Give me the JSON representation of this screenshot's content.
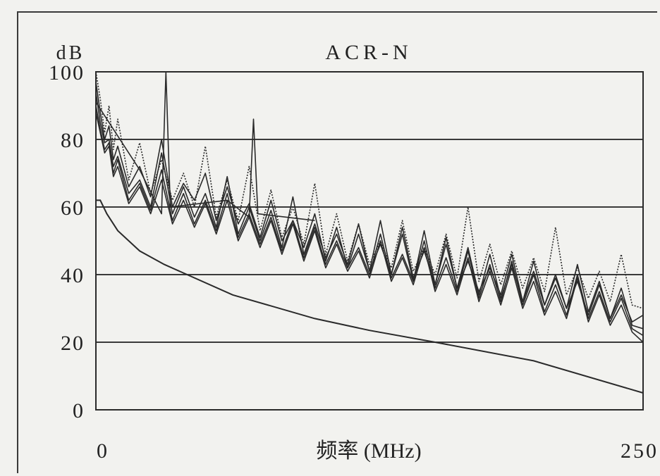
{
  "chart_data": {
    "type": "line",
    "title": "ACR-N",
    "ylabel": "dB",
    "xlabel": "频率 (MHz)",
    "xlim": [
      0,
      250
    ],
    "ylim": [
      0,
      100
    ],
    "x_ticks": [
      "0",
      "250"
    ],
    "y_ticks": [
      "0",
      "20",
      "40",
      "60",
      "80",
      "100"
    ],
    "grid": "horizontal",
    "colors": {
      "line": "#2a2a2a",
      "grid": "#3a3a3a",
      "background": "#f2f2ef"
    },
    "limit_line": {
      "x": [
        0,
        2,
        5,
        10,
        20,
        31.25,
        62.5,
        100,
        125,
        155,
        200,
        250
      ],
      "y": [
        62,
        62,
        58,
        53,
        47,
        43,
        34,
        27,
        23.5,
        20,
        14.5,
        5
      ]
    },
    "series": [
      {
        "style": "solid",
        "x": [
          0,
          2,
          4,
          6,
          8,
          10,
          15,
          20,
          25,
          30,
          35,
          40,
          45,
          50,
          55,
          60,
          65,
          70,
          75,
          80,
          85,
          90,
          95,
          100,
          105,
          110,
          115,
          120,
          125,
          130,
          135,
          140,
          145,
          150,
          155,
          160,
          165,
          170,
          175,
          180,
          185,
          190,
          195,
          200,
          205,
          210,
          215,
          220,
          225,
          230,
          235,
          240,
          245,
          250
        ],
        "y": [
          97,
          88,
          80,
          84,
          74,
          78,
          66,
          72,
          63,
          80,
          60,
          67,
          62,
          70,
          56,
          66,
          55,
          61,
          51,
          62,
          50,
          56,
          48,
          58,
          44,
          54,
          42,
          52,
          41,
          56,
          40,
          52,
          38,
          53,
          37,
          49,
          36,
          48,
          34,
          46,
          33,
          43,
          32,
          44,
          31,
          40,
          30,
          38,
          28,
          37,
          27,
          34,
          26,
          28
        ]
      },
      {
        "style": "dotted",
        "x": [
          0,
          2,
          4,
          6,
          8,
          10,
          15,
          20,
          25,
          30,
          35,
          40,
          45,
          50,
          55,
          60,
          65,
          70,
          75,
          80,
          85,
          90,
          95,
          100,
          105,
          110,
          115,
          120,
          125,
          130,
          135,
          140,
          145,
          150,
          155,
          160,
          165,
          170,
          175,
          180,
          185,
          190,
          195,
          200,
          205,
          210,
          215,
          220,
          225,
          230,
          235,
          240,
          245,
          250
        ],
        "y": [
          100,
          92,
          82,
          90,
          77,
          86,
          68,
          79,
          64,
          74,
          62,
          70,
          60,
          78,
          57,
          68,
          56,
          72,
          53,
          65,
          51,
          60,
          49,
          67,
          46,
          58,
          44,
          55,
          43,
          50,
          42,
          56,
          41,
          48,
          40,
          52,
          39,
          60,
          38,
          49,
          37,
          47,
          36,
          45,
          35,
          54,
          34,
          42,
          33,
          41,
          32,
          46,
          31,
          30
        ]
      },
      {
        "style": "solid",
        "x": [
          0,
          2,
          4,
          6,
          8,
          10,
          15,
          20,
          25,
          30,
          35,
          40,
          45,
          50,
          55,
          60,
          65,
          70,
          75,
          80,
          85,
          90,
          95,
          100,
          105,
          110,
          115,
          120,
          125,
          130,
          135,
          140,
          145,
          150,
          155,
          160,
          165,
          170,
          175,
          180,
          185,
          190,
          195,
          200,
          205,
          210,
          215,
          220,
          225,
          230,
          235,
          240,
          245,
          250
        ],
        "y": [
          94,
          85,
          79,
          80,
          72,
          75,
          64,
          68,
          60,
          76,
          58,
          66,
          57,
          64,
          54,
          69,
          52,
          60,
          50,
          59,
          48,
          63,
          46,
          55,
          45,
          52,
          43,
          55,
          41,
          49,
          40,
          54,
          39,
          47,
          37,
          51,
          36,
          44,
          35,
          42,
          34,
          46,
          32,
          41,
          31,
          39,
          30,
          43,
          29,
          38,
          27,
          36,
          25,
          24
        ]
      },
      {
        "style": "solid",
        "x": [
          0,
          2,
          4,
          6,
          8,
          10,
          15,
          20,
          25,
          30,
          35,
          40,
          45,
          50,
          55,
          60,
          65,
          70,
          75,
          80,
          85,
          90,
          95,
          100,
          105,
          110,
          115,
          120,
          125,
          130,
          135,
          140,
          145,
          150,
          155,
          160,
          165,
          170,
          175,
          180,
          185,
          190,
          195,
          200,
          205,
          210,
          215,
          220,
          225,
          230,
          235,
          240,
          245,
          250
        ],
        "y": [
          90,
          83,
          77,
          79,
          70,
          74,
          62,
          67,
          59,
          71,
          56,
          64,
          55,
          62,
          53,
          64,
          51,
          58,
          49,
          57,
          47,
          56,
          45,
          54,
          43,
          50,
          42,
          48,
          40,
          52,
          39,
          46,
          38,
          50,
          36,
          45,
          35,
          47,
          33,
          43,
          32,
          44,
          31,
          40,
          29,
          37,
          28,
          40,
          27,
          35,
          26,
          33,
          24,
          22
        ]
      },
      {
        "style": "solid",
        "x": [
          0,
          2,
          4,
          6,
          8,
          10,
          15,
          20,
          25,
          30,
          35,
          40,
          45,
          50,
          55,
          60,
          65,
          70,
          75,
          80,
          85,
          90,
          95,
          100,
          105,
          110,
          115,
          120,
          125,
          130,
          135,
          140,
          145,
          150,
          155,
          160,
          165,
          170,
          175,
          180,
          185,
          190,
          195,
          200,
          205,
          210,
          215,
          220,
          225,
          230,
          235,
          240,
          245,
          250
        ],
        "y": [
          88,
          82,
          76,
          78,
          69,
          72,
          61,
          66,
          58,
          68,
          55,
          62,
          54,
          61,
          52,
          62,
          50,
          57,
          48,
          56,
          46,
          55,
          44,
          53,
          42,
          49,
          41,
          47,
          39,
          50,
          38,
          45,
          37,
          48,
          35,
          43,
          34,
          45,
          32,
          41,
          31,
          42,
          30,
          38,
          28,
          35,
          27,
          39,
          26,
          34,
          25,
          31,
          23,
          20
        ]
      },
      {
        "style": "solid",
        "x": [
          0,
          20,
          30,
          32,
          34,
          60,
          70,
          72,
          74,
          100
        ],
        "y": [
          91,
          71,
          58,
          100,
          60,
          62,
          57,
          86,
          58,
          56
        ]
      }
    ]
  }
}
